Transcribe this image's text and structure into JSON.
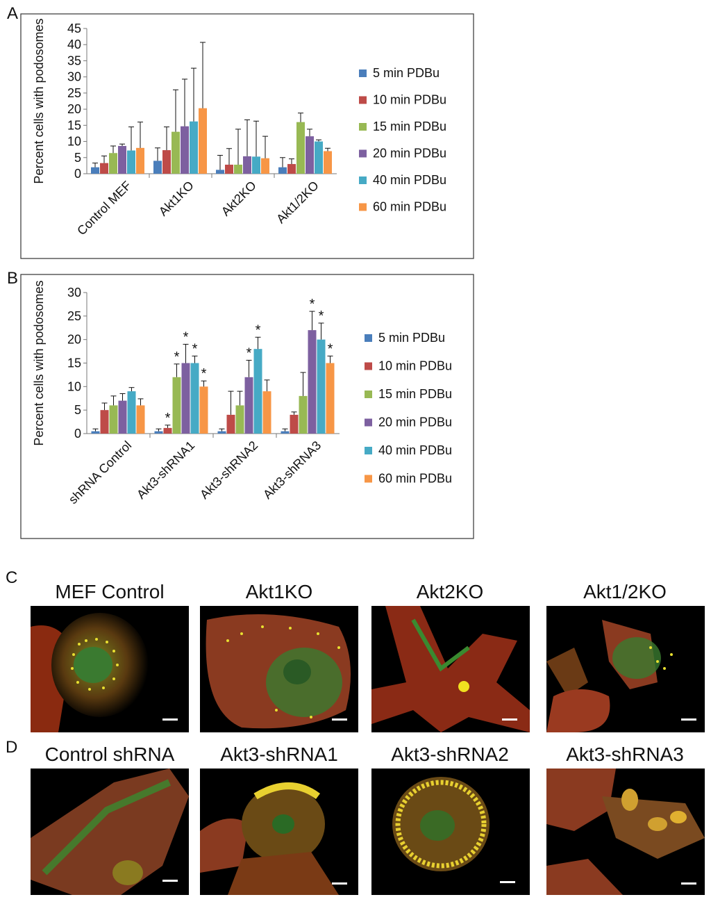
{
  "panel_letters": {
    "a": "A",
    "b": "B",
    "c": "C",
    "d": "D"
  },
  "chart_data": [
    {
      "type": "bar",
      "panel": "A",
      "ylabel": "Percent cells with podosomes",
      "categories": [
        "Control MEF",
        "Akt1KO",
        "Akt2KO",
        "Akt1/2KO"
      ],
      "ylim": [
        0,
        45
      ],
      "yticks": [
        0,
        5,
        10,
        15,
        20,
        25,
        30,
        35,
        40,
        45
      ],
      "legend_position": "right",
      "series": [
        {
          "name": "5 min PDBu",
          "color": "#4a7ebb",
          "values": [
            2,
            4,
            1.2,
            2
          ],
          "errors": [
            1.3,
            4,
            4.5,
            3
          ]
        },
        {
          "name": "10 min PDBu",
          "color": "#be4b48",
          "values": [
            3.3,
            7.3,
            2.8,
            3
          ],
          "errors": [
            2.2,
            7.2,
            5,
            1.6
          ]
        },
        {
          "name": "15 min PDBu",
          "color": "#98b954",
          "values": [
            6.4,
            13,
            2.8,
            16
          ],
          "errors": [
            2.2,
            13,
            11,
            2.8
          ]
        },
        {
          "name": "20 min PDBu",
          "color": "#7d60a0",
          "values": [
            8.6,
            14.7,
            5.4,
            11.6
          ],
          "errors": [
            0.6,
            14.6,
            11.3,
            2.2
          ]
        },
        {
          "name": "40 min PDBu",
          "color": "#46aac5",
          "values": [
            7.2,
            16.2,
            5.3,
            10
          ],
          "errors": [
            7.3,
            16.5,
            11,
            0.5
          ]
        },
        {
          "name": "60 min PDBu",
          "color": "#f79646",
          "values": [
            8,
            20.3,
            4.8,
            7
          ],
          "errors": [
            8,
            20.4,
            6.8,
            0.9
          ]
        }
      ]
    },
    {
      "type": "bar",
      "panel": "B",
      "ylabel": "Percent cells with podosomes",
      "categories": [
        "shRNA Control",
        "Akt3-shRNA1",
        "Akt3-shRNA2",
        "Akt3-shRNA3"
      ],
      "ylim": [
        0,
        30
      ],
      "yticks": [
        0,
        5,
        10,
        15,
        20,
        25,
        30
      ],
      "legend_position": "right",
      "significance_marker": "*",
      "series": [
        {
          "name": "5 min PDBu",
          "color": "#4a7ebb",
          "values": [
            0.5,
            0.5,
            0.5,
            0.5
          ],
          "errors": [
            0.5,
            0.5,
            0.5,
            0.5
          ],
          "significant": [
            false,
            false,
            false,
            false
          ]
        },
        {
          "name": "10 min PDBu",
          "color": "#be4b48",
          "values": [
            5,
            1.2,
            4,
            4
          ],
          "errors": [
            1.5,
            0.6,
            5,
            0.6
          ],
          "significant": [
            false,
            true,
            false,
            false
          ]
        },
        {
          "name": "15 min PDBu",
          "color": "#98b954",
          "values": [
            6,
            12,
            6,
            8
          ],
          "errors": [
            2,
            2.8,
            3,
            5
          ],
          "significant": [
            false,
            true,
            false,
            false
          ]
        },
        {
          "name": "20 min PDBu",
          "color": "#7d60a0",
          "values": [
            7,
            15,
            12,
            22
          ],
          "errors": [
            1.5,
            4,
            3.6,
            4
          ],
          "significant": [
            false,
            true,
            true,
            true
          ]
        },
        {
          "name": "40 min PDBu",
          "color": "#46aac5",
          "values": [
            9,
            15,
            18,
            20
          ],
          "errors": [
            0.8,
            1.5,
            2.5,
            3.5
          ],
          "significant": [
            false,
            true,
            true,
            true
          ]
        },
        {
          "name": "60 min PDBu",
          "color": "#f79646",
          "values": [
            6,
            10,
            9,
            15
          ],
          "errors": [
            1.4,
            1.2,
            2.4,
            1.5
          ],
          "significant": [
            false,
            true,
            false,
            true
          ]
        }
      ]
    }
  ],
  "micrographs": {
    "row_c": [
      "MEF Control",
      "Akt1KO",
      "Akt2KO",
      "Akt1/2KO"
    ],
    "row_d": [
      "Control shRNA",
      "Akt3-shRNA1",
      "Akt3-shRNA2",
      "Akt3-shRNA3"
    ]
  }
}
